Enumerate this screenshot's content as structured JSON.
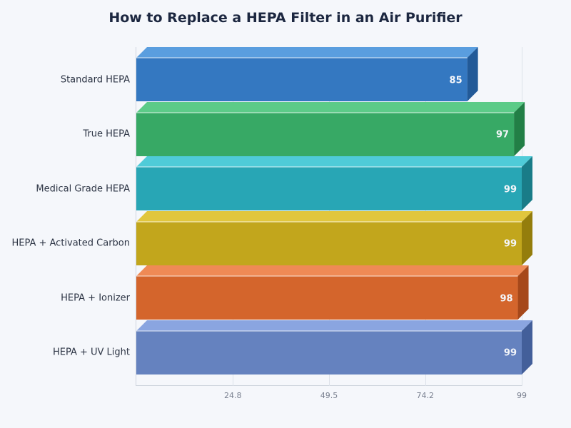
{
  "chart_data": {
    "type": "bar",
    "orientation": "horizontal",
    "style": "3d",
    "title": "How to Replace a HEPA Filter in an Air Purifier",
    "xlabel": "",
    "ylabel": "",
    "categories": [
      "Standard HEPA",
      "True HEPA",
      "Medical Grade HEPA",
      "HEPA + Activated Carbon",
      "HEPA + Ionizer",
      "HEPA + UV Light"
    ],
    "values": [
      85,
      97,
      99,
      99,
      98,
      99
    ],
    "xlim": [
      0,
      99
    ],
    "x_ticks": [
      "24.8",
      "49.5",
      "74.2",
      "99"
    ],
    "grid": true,
    "legend": "none",
    "colors": [
      {
        "front": "#3478c1",
        "top": "#5a9edf",
        "side": "#225a98"
      },
      {
        "front": "#37a965",
        "top": "#5ccb88",
        "side": "#227f46"
      },
      {
        "front": "#28a6b5",
        "top": "#4fcbd8",
        "side": "#197c88"
      },
      {
        "front": "#c2a61c",
        "top": "#e1c63d",
        "side": "#947d0c"
      },
      {
        "front": "#d4652c",
        "top": "#ef8a55",
        "side": "#a6481a"
      },
      {
        "front": "#6582bf",
        "top": "#8aa5e0",
        "side": "#435f9a"
      }
    ]
  }
}
